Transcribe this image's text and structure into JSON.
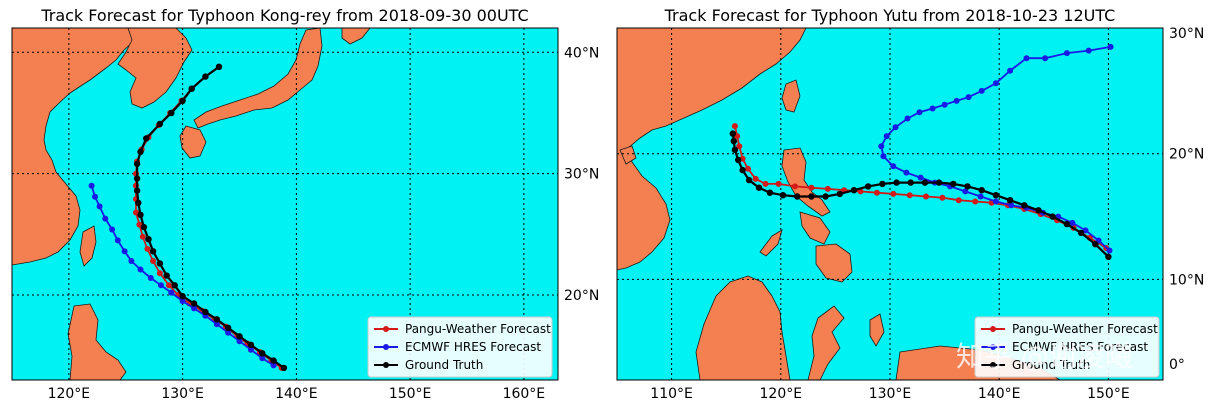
{
  "colors": {
    "ocean": "#00f2f2",
    "land": "#f47f50",
    "coast": "#1a1a1a",
    "pangu": "#d41919",
    "ecmwf": "#1a1ae6",
    "truth": "#000000",
    "grid": "#000000"
  },
  "watermark": "知乎 @谢凌曦",
  "chart_data": [
    {
      "type": "scatter",
      "title": "Track Forecast for Typhoon Kong-rey from 2018-09-30 00UTC",
      "xlim": [
        115,
        163
      ],
      "ylim": [
        13,
        42
      ],
      "x_ticks": [
        120,
        130,
        140,
        150,
        160
      ],
      "x_tick_labels": [
        "120°E",
        "130°E",
        "140°E",
        "150°E",
        "160°E"
      ],
      "y_ticks": [
        20,
        30,
        40
      ],
      "y_tick_labels": [
        "20°N",
        "30°N",
        "40°N"
      ],
      "legend_position": "lower-right",
      "legend": [
        "Pangu-Weather Forecast",
        "ECMWF HRES Forecast",
        "Ground Truth"
      ],
      "series": [
        {
          "name": "Pangu-Weather Forecast",
          "points": [
            [
              138.7,
              14.0
            ],
            [
              137.8,
              14.6
            ],
            [
              136.8,
              15.3
            ],
            [
              135.7,
              16.0
            ],
            [
              134.8,
              16.6
            ],
            [
              133.8,
              17.4
            ],
            [
              132.8,
              18.0
            ],
            [
              131.7,
              18.7
            ],
            [
              130.6,
              19.3
            ],
            [
              129.6,
              20.0
            ],
            [
              128.8,
              20.8
            ],
            [
              128.0,
              21.8
            ],
            [
              127.4,
              22.8
            ],
            [
              126.9,
              23.8
            ],
            [
              126.5,
              24.8
            ],
            [
              126.2,
              25.8
            ],
            [
              125.9,
              26.8
            ],
            [
              125.9,
              27.9
            ],
            [
              125.9,
              29.0
            ],
            [
              125.9,
              30.0
            ],
            [
              126.0,
              31.0
            ],
            [
              126.4,
              32.0
            ],
            [
              127.0,
              33.0
            ],
            [
              127.9,
              34.0
            ],
            [
              128.9,
              35.0
            ],
            [
              129.9,
              36.0
            ],
            [
              130.8,
              37.0
            ],
            [
              132.0,
              38.0
            ],
            [
              133.2,
              38.8
            ]
          ]
        },
        {
          "name": "ECMWF HRES Forecast",
          "points": [
            [
              138.0,
              14.2
            ],
            [
              137.0,
              14.8
            ],
            [
              136.0,
              15.5
            ],
            [
              135.0,
              16.2
            ],
            [
              134.0,
              16.9
            ],
            [
              133.0,
              17.6
            ],
            [
              132.0,
              18.3
            ],
            [
              131.0,
              18.9
            ],
            [
              130.0,
              19.5
            ],
            [
              129.0,
              20.2
            ],
            [
              128.1,
              20.8
            ],
            [
              127.2,
              21.4
            ],
            [
              126.3,
              22.1
            ],
            [
              125.5,
              22.8
            ],
            [
              124.9,
              23.6
            ],
            [
              124.3,
              24.5
            ],
            [
              123.8,
              25.4
            ],
            [
              123.2,
              26.3
            ],
            [
              122.7,
              27.3
            ],
            [
              122.3,
              28.1
            ],
            [
              122.0,
              29.0
            ]
          ]
        },
        {
          "name": "Ground Truth",
          "points": [
            [
              138.9,
              14.0
            ],
            [
              138.0,
              14.6
            ],
            [
              137.0,
              15.2
            ],
            [
              136.0,
              15.9
            ],
            [
              135.0,
              16.6
            ],
            [
              134.0,
              17.3
            ],
            [
              133.0,
              18.0
            ],
            [
              132.0,
              18.6
            ],
            [
              131.0,
              19.3
            ],
            [
              130.0,
              19.9
            ],
            [
              129.3,
              20.8
            ],
            [
              128.6,
              21.6
            ],
            [
              128.0,
              22.6
            ],
            [
              127.4,
              23.6
            ],
            [
              127.0,
              24.6
            ],
            [
              126.6,
              25.6
            ],
            [
              126.3,
              26.6
            ],
            [
              126.1,
              27.6
            ],
            [
              126.0,
              28.6
            ],
            [
              126.0,
              29.6
            ],
            [
              126.0,
              30.8
            ],
            [
              126.3,
              31.8
            ],
            [
              126.8,
              32.9
            ],
            [
              128.0,
              34.1
            ],
            [
              129.0,
              35.0
            ],
            [
              130.0,
              36.0
            ],
            [
              130.8,
              37.0
            ],
            [
              132.0,
              38.0
            ],
            [
              133.2,
              38.8
            ]
          ]
        }
      ]
    },
    {
      "type": "scatter",
      "title": "Track Forecast for Typhoon Yutu from 2018-10-23 12UTC",
      "xlim": [
        105,
        155
      ],
      "ylim": [
        2,
        30
      ],
      "x_ticks": [
        110,
        120,
        130,
        140,
        150
      ],
      "x_tick_labels": [
        "110°E",
        "120°E",
        "130°E",
        "140°E",
        "150°E"
      ],
      "y_ticks": [
        0,
        10,
        20,
        30
      ],
      "y_tick_labels": [
        "0°",
        "10°N",
        "20°N",
        "30°N"
      ],
      "legend_position": "lower-right",
      "legend": [
        "Pangu-Weather Forecast",
        "ECMWF HRES Forecast",
        "Ground Truth"
      ],
      "series": [
        {
          "name": "Pangu-Weather Forecast",
          "points": [
            [
              149.8,
              12.5
            ],
            [
              148.3,
              13.3
            ],
            [
              146.8,
              14.1
            ],
            [
              145.3,
              14.7
            ],
            [
              143.8,
              15.2
            ],
            [
              142.3,
              15.6
            ],
            [
              140.8,
              15.9
            ],
            [
              139.3,
              16.1
            ],
            [
              137.8,
              16.2
            ],
            [
              136.3,
              16.3
            ],
            [
              134.8,
              16.5
            ],
            [
              133.3,
              16.6
            ],
            [
              131.8,
              16.7
            ],
            [
              130.3,
              16.8
            ],
            [
              128.8,
              16.9
            ],
            [
              127.3,
              17.0
            ],
            [
              125.8,
              17.1
            ],
            [
              124.3,
              17.2
            ],
            [
              122.8,
              17.3
            ],
            [
              121.3,
              17.4
            ],
            [
              119.8,
              17.6
            ],
            [
              118.6,
              17.6
            ],
            [
              117.7,
              18.0
            ],
            [
              117.0,
              18.8
            ],
            [
              116.5,
              19.6
            ],
            [
              116.2,
              20.6
            ],
            [
              116.0,
              21.4
            ],
            [
              115.8,
              22.2
            ]
          ]
        },
        {
          "name": "ECMWF HRES Forecast",
          "points": [
            [
              150.2,
              28.5
            ],
            [
              148.2,
              28.2
            ],
            [
              146.2,
              28.0
            ],
            [
              144.2,
              27.6
            ],
            [
              142.5,
              27.6
            ],
            [
              141.0,
              26.6
            ],
            [
              139.7,
              25.6
            ],
            [
              138.4,
              25.0
            ],
            [
              137.2,
              24.5
            ],
            [
              136.1,
              24.2
            ],
            [
              135.0,
              23.9
            ],
            [
              133.9,
              23.6
            ],
            [
              132.7,
              23.3
            ],
            [
              131.6,
              22.8
            ],
            [
              130.5,
              22.1
            ],
            [
              129.7,
              21.4
            ],
            [
              129.2,
              20.6
            ],
            [
              129.4,
              19.8
            ],
            [
              130.3,
              19.0
            ],
            [
              131.5,
              18.5
            ],
            [
              132.8,
              18.1
            ],
            [
              134.1,
              17.7
            ],
            [
              135.5,
              17.4
            ],
            [
              136.9,
              17.0
            ],
            [
              138.3,
              16.6
            ],
            [
              139.7,
              16.2
            ],
            [
              141.1,
              15.9
            ],
            [
              142.5,
              15.7
            ],
            [
              144.0,
              15.3
            ],
            [
              145.4,
              15.0
            ],
            [
              146.7,
              14.5
            ],
            [
              147.9,
              13.9
            ],
            [
              149.1,
              13.1
            ],
            [
              150.1,
              12.3
            ]
          ]
        },
        {
          "name": "Ground Truth",
          "points": [
            [
              150.0,
              11.8
            ],
            [
              148.8,
              12.8
            ],
            [
              147.5,
              13.7
            ],
            [
              146.2,
              14.4
            ],
            [
              144.9,
              15.0
            ],
            [
              143.6,
              15.5
            ],
            [
              142.3,
              15.9
            ],
            [
              141.0,
              16.3
            ],
            [
              139.7,
              16.7
            ],
            [
              138.4,
              17.1
            ],
            [
              137.1,
              17.4
            ],
            [
              135.8,
              17.6
            ],
            [
              134.5,
              17.7
            ],
            [
              133.2,
              17.7
            ],
            [
              131.9,
              17.7
            ],
            [
              130.6,
              17.7
            ],
            [
              129.3,
              17.6
            ],
            [
              128.0,
              17.4
            ],
            [
              126.7,
              17.1
            ],
            [
              125.4,
              16.8
            ],
            [
              124.1,
              16.6
            ],
            [
              122.8,
              16.6
            ],
            [
              121.5,
              16.6
            ],
            [
              120.2,
              16.7
            ],
            [
              119.0,
              16.9
            ],
            [
              118.0,
              17.3
            ],
            [
              117.1,
              17.9
            ],
            [
              116.5,
              18.7
            ],
            [
              116.1,
              19.5
            ],
            [
              115.8,
              20.3
            ],
            [
              115.7,
              21.0
            ],
            [
              115.6,
              21.6
            ]
          ]
        }
      ]
    }
  ]
}
